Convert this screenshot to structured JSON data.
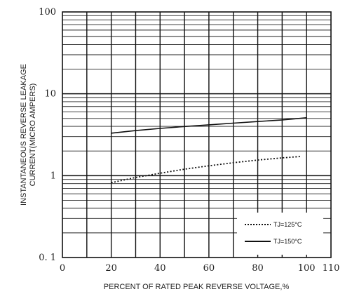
{
  "chart_data": {
    "type": "line",
    "title": "",
    "xlabel": "PERCENT OF RATED PEAK REVERSE VOLTAGE,%",
    "ylabel_lines": [
      "INSTANTANEOUS REVERSE LEAKAGE",
      "CURRENT(MICRO AMPERS)"
    ],
    "xlim": [
      0,
      110
    ],
    "ylim": [
      0.1,
      100
    ],
    "yscale": "log",
    "grid": true,
    "x_ticks": [
      "0",
      "20",
      "40",
      "60",
      "80",
      "100",
      "110"
    ],
    "y_ticks": [
      "0. 1",
      "1",
      "10",
      "100"
    ],
    "legend_position": "bottom-right",
    "series": [
      {
        "name": "TJ=125°C",
        "style": "dotted",
        "x": [
          20,
          30,
          40,
          50,
          60,
          70,
          80,
          90,
          98
        ],
        "y": [
          0.82,
          0.95,
          1.07,
          1.2,
          1.32,
          1.44,
          1.55,
          1.65,
          1.72
        ]
      },
      {
        "name": "TJ=150°C",
        "style": "solid",
        "x": [
          20,
          30,
          40,
          50,
          60,
          70,
          80,
          90,
          100
        ],
        "y": [
          3.3,
          3.55,
          3.78,
          3.98,
          4.18,
          4.38,
          4.58,
          4.8,
          5.1
        ]
      }
    ]
  }
}
